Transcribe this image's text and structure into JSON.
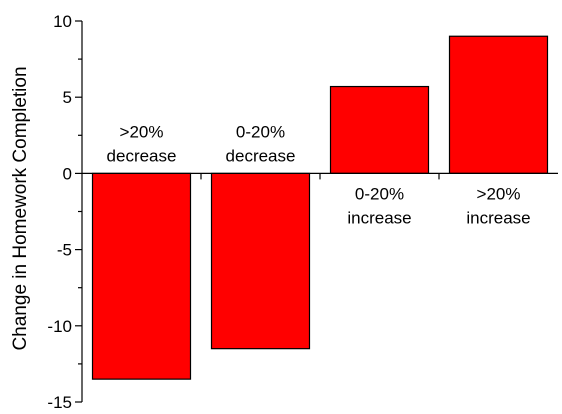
{
  "chart_data": {
    "type": "bar",
    "ylabel": "Change in Homework Completion",
    "xlabel": "",
    "ylim": [
      -15,
      10
    ],
    "yticks": [
      -15,
      -10,
      -5,
      0,
      5,
      10
    ],
    "grid": false,
    "bar_color": "#ff0000",
    "categories": [
      {
        "lines": [
          ">20%",
          "decrease"
        ],
        "value": -13.5
      },
      {
        "lines": [
          "0-20%",
          "decrease"
        ],
        "value": -11.5
      },
      {
        "lines": [
          "0-20%",
          "increase"
        ],
        "value": 5.7
      },
      {
        "lines": [
          ">20%",
          "increase"
        ],
        "value": 9.0
      }
    ]
  }
}
